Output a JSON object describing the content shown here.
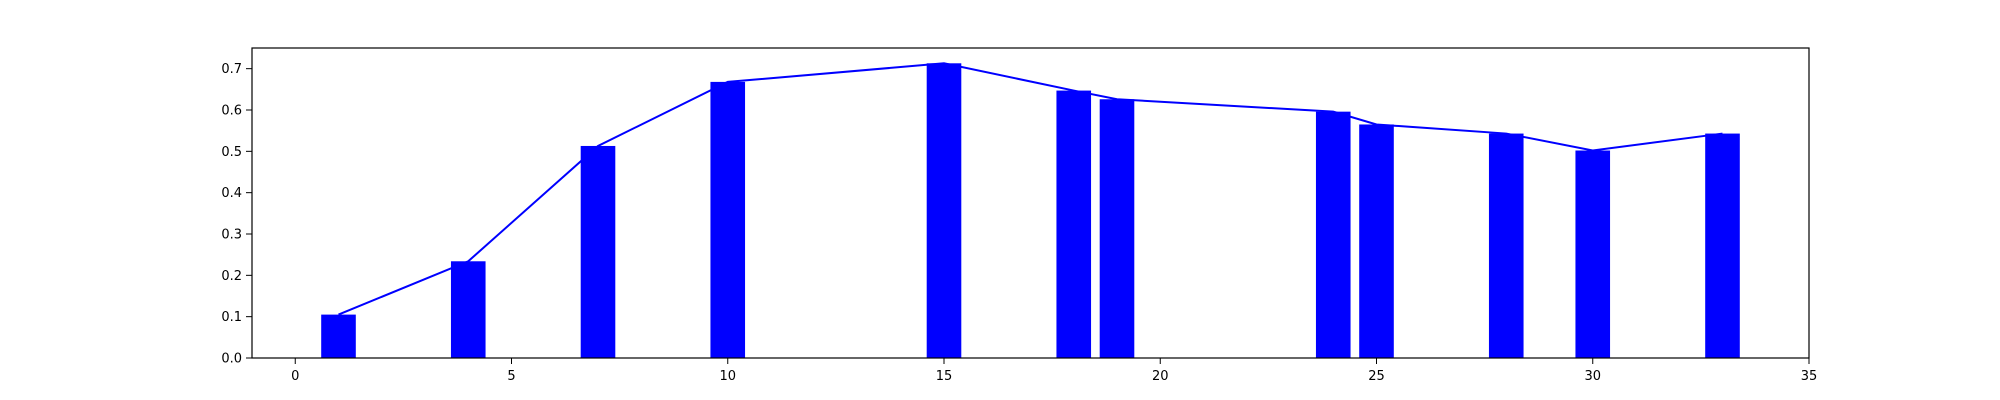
{
  "chart_data": {
    "type": "bar",
    "x": [
      1,
      4,
      7,
      10,
      15,
      18,
      19,
      24,
      25,
      28,
      30,
      33
    ],
    "values": [
      0.105,
      0.234,
      0.513,
      0.668,
      0.713,
      0.647,
      0.626,
      0.596,
      0.565,
      0.543,
      0.502,
      0.543
    ],
    "overlay_line": true,
    "color": "#0000ff",
    "xlim": [
      -1,
      35
    ],
    "ylim": [
      0,
      0.75
    ],
    "xticks": [
      "0",
      "5",
      "10",
      "15",
      "20",
      "25",
      "30",
      "35"
    ],
    "yticks": [
      "0.0",
      "0.1",
      "0.2",
      "0.3",
      "0.4",
      "0.5",
      "0.6",
      "0.7"
    ],
    "title": "",
    "xlabel": "",
    "ylabel": "",
    "grid": false,
    "legend": "none"
  }
}
